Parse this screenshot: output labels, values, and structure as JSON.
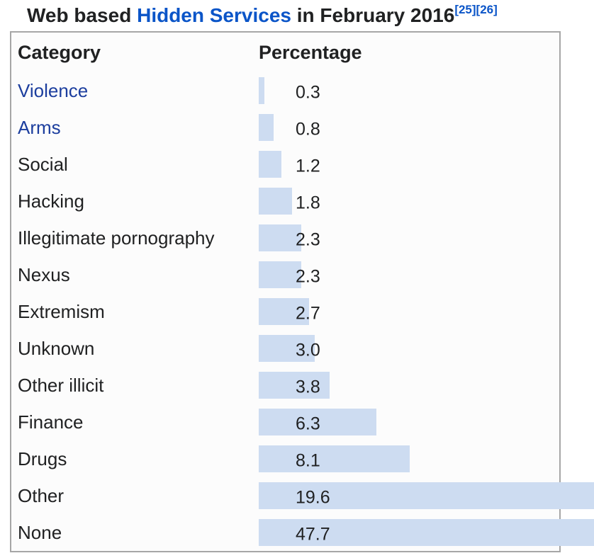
{
  "title": {
    "prefix": "Web based ",
    "link": "Hidden Services",
    "suffix": " in February 2016",
    "citations": [
      "[25]",
      "[26]"
    ]
  },
  "table": {
    "headers": {
      "category": "Category",
      "percentage": "Percentage"
    }
  },
  "chart_data": {
    "type": "bar",
    "orientation": "horizontal",
    "title": "Web based Hidden Services in February 2016",
    "xlabel": "Percentage",
    "ylabel": "Category",
    "xlim": [
      0,
      47.7
    ],
    "grid": false,
    "legend": false,
    "categories": [
      "Violence",
      "Arms",
      "Social",
      "Hacking",
      "Illegitimate pornography",
      "Nexus",
      "Extremism",
      "Unknown",
      "Other illicit",
      "Finance",
      "Drugs",
      "Other",
      "None"
    ],
    "values": [
      0.3,
      0.8,
      1.2,
      1.8,
      2.3,
      2.3,
      2.7,
      3.0,
      3.8,
      6.3,
      8.1,
      19.6,
      47.7
    ],
    "value_labels": [
      "0.3",
      "0.8",
      "1.2",
      "1.8",
      "2.3",
      "2.3",
      "2.7",
      "3.0",
      "3.8",
      "6.3",
      "8.1",
      "19.6",
      "47.7"
    ],
    "link_categories": [
      "Violence",
      "Arms"
    ]
  },
  "colors": {
    "text": "#202122",
    "title-link": "#0b55c8",
    "category-link": "#1c3e9e",
    "bar": "#cddcf1",
    "table-border": "#a6a6a6",
    "table-bg": "#fcfcfc"
  }
}
